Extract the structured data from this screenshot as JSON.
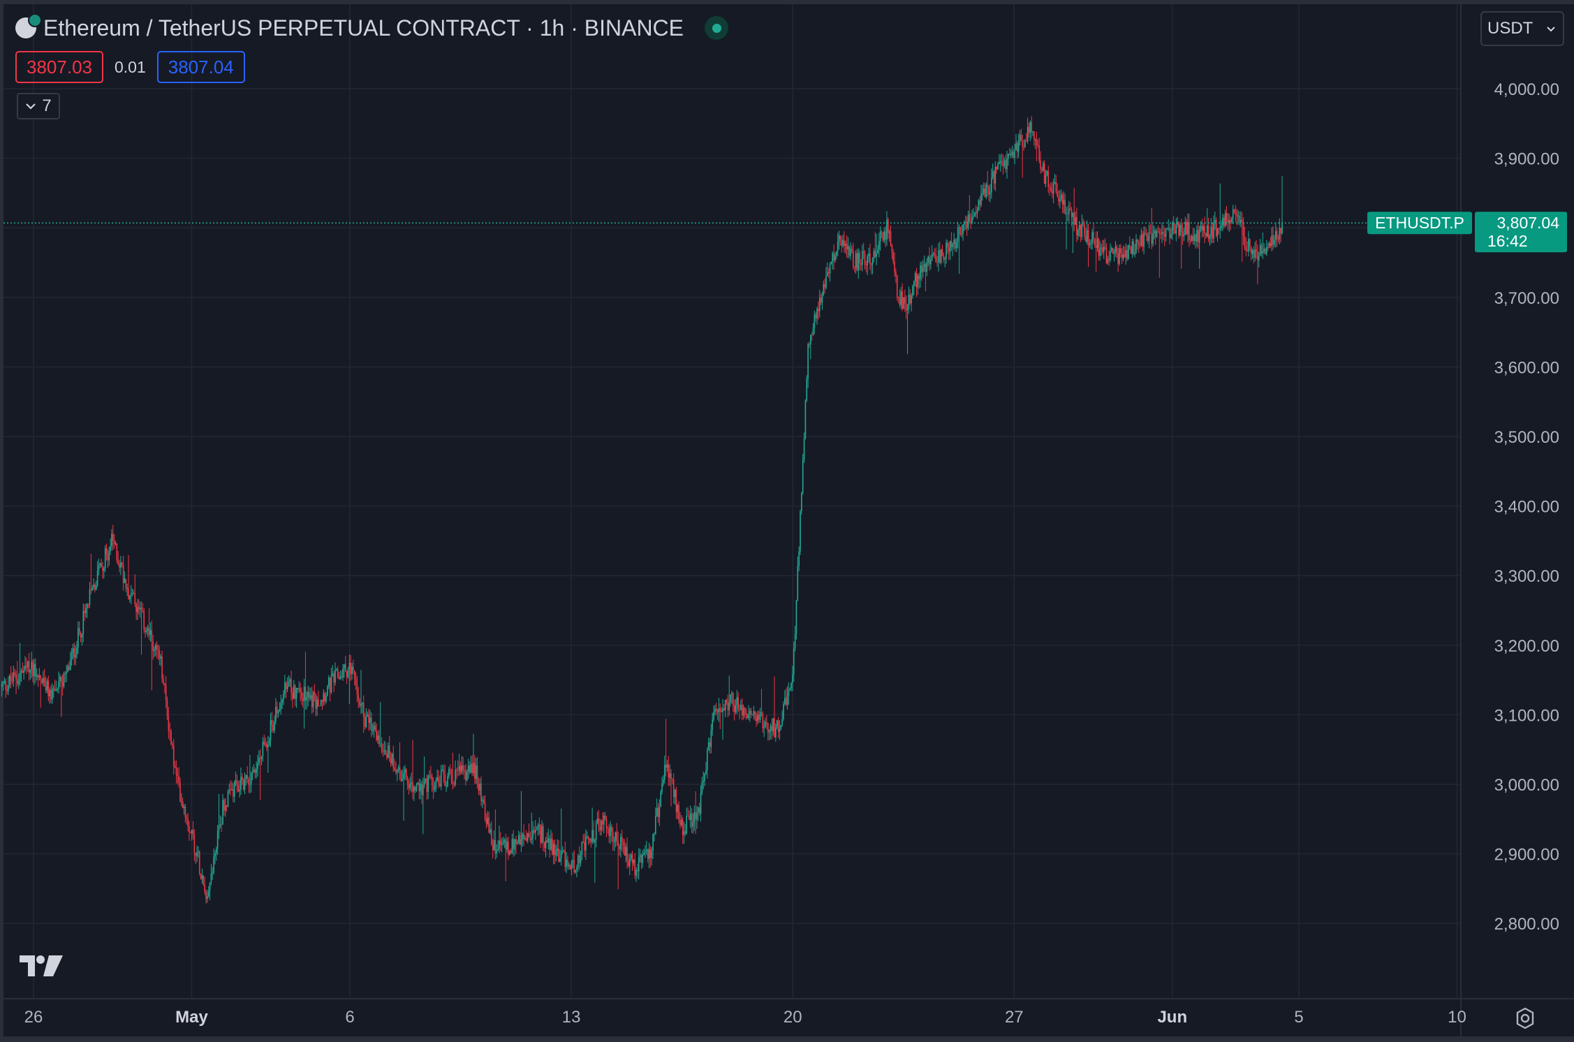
{
  "header": {
    "title": "Ethereum / TetherUS PERPETUAL CONTRACT · 1h · BINANCE",
    "sell_price": "3807.03",
    "spread": "0.01",
    "buy_price": "3807.04",
    "indicators_count": "7",
    "currency": "USDT"
  },
  "colors": {
    "background": "#161a25",
    "grid": "#232733",
    "up": "#22ab94",
    "down": "#f23645",
    "text": "#d1d4dc",
    "axis_text": "#b2b5be"
  },
  "icons": [
    "ethereum-logo-icon",
    "status-dot-icon",
    "chevron-down-icon",
    "tradingview-logo-icon",
    "settings-icon"
  ],
  "chart_data": {
    "type": "candlestick",
    "symbol": "ETHUSDT.P",
    "interval": "1h",
    "title": "Ethereum / TetherUS PERPETUAL CONTRACT · 1h · BINANCE",
    "x_tick_labels": [
      "26",
      "May",
      "6",
      "13",
      "20",
      "27",
      "Jun",
      "5",
      "10"
    ],
    "y_tick_labels": [
      "4,000.00",
      "3,900.00",
      "3,800.00",
      "3,700.00",
      "3,600.00",
      "3,500.00",
      "3,400.00",
      "3,300.00",
      "3,200.00",
      "3,100.00",
      "3,000.00",
      "2,900.00",
      "2,800.00"
    ],
    "ylim": [
      2700,
      4060
    ],
    "grid": true,
    "last_price": {
      "label": "ETHUSDT.P",
      "value": "3,807.04",
      "countdown": "16:42",
      "price": 3807.04
    },
    "price_path": [
      [
        "Apr 25",
        3140
      ],
      [
        "Apr 26",
        3170
      ],
      [
        "Apr 26",
        3130
      ],
      [
        "Apr 27",
        3150
      ],
      [
        "Apr 28",
        3300
      ],
      [
        "Apr 28",
        3350
      ],
      [
        "Apr 29",
        3280
      ],
      [
        "Apr 29",
        3230
      ],
      [
        "Apr 30",
        3180
      ],
      [
        "Apr 30",
        3010
      ],
      [
        "May 1",
        2930
      ],
      [
        "May 1",
        2840
      ],
      [
        "May 2",
        2970
      ],
      [
        "May 2",
        3000
      ],
      [
        "May 3",
        3020
      ],
      [
        "May 4",
        3140
      ],
      [
        "May 5",
        3120
      ],
      [
        "May 5",
        3150
      ],
      [
        "May 6",
        3170
      ],
      [
        "May 6",
        3090
      ],
      [
        "May 7",
        3060
      ],
      [
        "May 8",
        2990
      ],
      [
        "May 9",
        3010
      ],
      [
        "May 10",
        3020
      ],
      [
        "May 10",
        2910
      ],
      [
        "May 11",
        2910
      ],
      [
        "May 12",
        2930
      ],
      [
        "May 13",
        2880
      ],
      [
        "May 14",
        2950
      ],
      [
        "May 15",
        2880
      ],
      [
        "May 15",
        2900
      ],
      [
        "May 16",
        3030
      ],
      [
        "May 16",
        2940
      ],
      [
        "May 17",
        2950
      ],
      [
        "May 17",
        3100
      ],
      [
        "May 18",
        3120
      ],
      [
        "May 19",
        3090
      ],
      [
        "May 19",
        3080
      ],
      [
        "May 20",
        3150
      ],
      [
        "May 20",
        3640
      ],
      [
        "May 21",
        3710
      ],
      [
        "May 21",
        3790
      ],
      [
        "May 22",
        3750
      ],
      [
        "May 22",
        3760
      ],
      [
        "May 23",
        3800
      ],
      [
        "May 23",
        3700
      ],
      [
        "May 23",
        3690
      ],
      [
        "May 24",
        3740
      ],
      [
        "May 25",
        3770
      ],
      [
        "May 26",
        3850
      ],
      [
        "May 27",
        3910
      ],
      [
        "May 27",
        3940
      ],
      [
        "May 28",
        3870
      ],
      [
        "May 28",
        3840
      ],
      [
        "May 29",
        3800
      ],
      [
        "May 30",
        3760
      ],
      [
        "May 30",
        3760
      ],
      [
        "May 31",
        3780
      ],
      [
        "Jun 1",
        3800
      ],
      [
        "Jun 2",
        3790
      ],
      [
        "Jun 3",
        3820
      ],
      [
        "Jun 3",
        3760
      ],
      [
        "Jun 4",
        3770
      ],
      [
        "Jun 4",
        3807.04
      ]
    ]
  }
}
